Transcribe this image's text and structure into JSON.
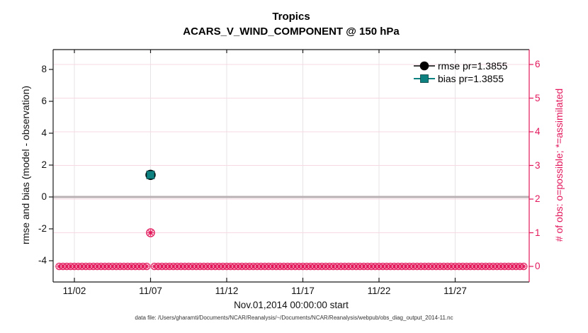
{
  "chart_data": {
    "type": "scatter",
    "title": "Tropics",
    "subtitle": "ACARS_V_WIND_COMPONENT @ 150 hPa",
    "xlabel": "Nov.01,2014 00:00:00 start",
    "ylabel_left": "rmse and bias (model - observation)",
    "ylabel_right": "# of obs: o=possible; *=assimilated",
    "datafile_note": "data file: /Users/gharamti/Documents/NCAR/Reanalysis/~/Documents/NCAR/Reanalysis/webpub/obs_diag_output_2014-11.nc",
    "grid": true,
    "x_axis": {
      "tick_labels": [
        "11/02",
        "11/07",
        "11/12",
        "11/17",
        "11/22",
        "11/27"
      ],
      "tick_days": [
        2,
        7,
        12,
        17,
        22,
        27
      ],
      "range_days": [
        0.6,
        31.9
      ]
    },
    "y_left": {
      "ticks": [
        8,
        6,
        4,
        2,
        0,
        -2,
        -4
      ],
      "range": [
        -5.3,
        9.2
      ]
    },
    "y_right": {
      "ticks": [
        6,
        5,
        4,
        3,
        2,
        1,
        0
      ],
      "range": [
        -0.46,
        6.44
      ]
    },
    "zero_line_y": 0,
    "legend": [
      {
        "label": "rmse pr=1.3855",
        "marker": "filled-circle",
        "color": "#000000"
      },
      {
        "label": "bias pr=1.3855",
        "marker": "filled-square",
        "color": "#0d8080"
      }
    ],
    "series": [
      {
        "name": "rmse",
        "marker": "filled-circle",
        "color": "#000000",
        "axis": "left",
        "points": [
          {
            "date": "11/07",
            "day": 7,
            "value": 1.3855
          }
        ]
      },
      {
        "name": "bias",
        "marker": "filled-square",
        "color": "#0d8080",
        "axis": "left",
        "points": [
          {
            "date": "11/07",
            "day": 7,
            "value": 1.3855
          }
        ]
      },
      {
        "name": "obs-count",
        "marker": "circle-asterisk",
        "color": "#e2185b",
        "axis": "right",
        "points": [
          {
            "date": "11/07",
            "day": 7,
            "count": 1
          }
        ],
        "band": {
          "count_value": 0,
          "start_day": 1.0,
          "end_day": 31.5,
          "interval_days": 0.25,
          "skip_days": [
            7
          ]
        }
      }
    ],
    "colors": {
      "pink": "#e2185b",
      "teal": "#0d8080",
      "black": "#000000",
      "zero_line": "#b9b1b4",
      "v_grid": "#e8e3e5",
      "h_grid": "#f7d9e4",
      "spine": "#1a1a1a"
    }
  }
}
